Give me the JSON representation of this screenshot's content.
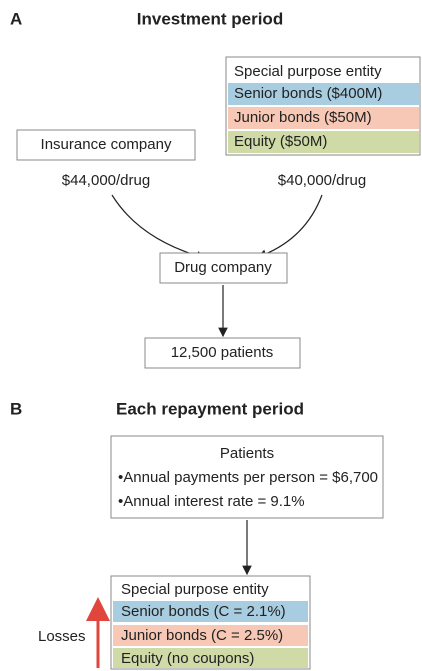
{
  "panel_a": {
    "label": "A",
    "title": "Investment period",
    "spe": {
      "title": "Special purpose entity",
      "rows": [
        "Senior bonds ($400M)",
        "Junior bonds ($50M)",
        "Equity ($50M)"
      ]
    },
    "insurance": "Insurance company",
    "insurance_payment": "$44,000/drug",
    "spe_payment": "$40,000/drug",
    "drug_company": "Drug company",
    "patients": "12,500 patients"
  },
  "panel_b": {
    "label": "B",
    "title": "Each repayment period",
    "patients": {
      "title": "Patients",
      "bullets": [
        "•Annual payments per person = $6,700",
        "•Annual interest rate = 9.1%"
      ]
    },
    "spe": {
      "title": "Special purpose entity",
      "rows": [
        "Senior bonds (C = 2.1%)",
        "Junior bonds (C = 2.5%)",
        "Equity (no coupons)"
      ]
    },
    "losses": "Losses"
  }
}
